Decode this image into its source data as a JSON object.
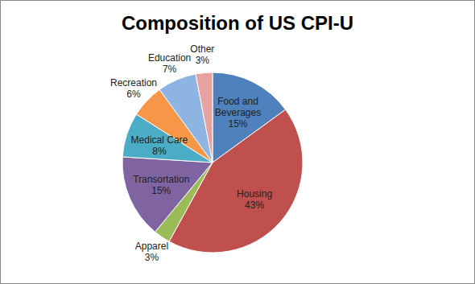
{
  "chart_data": {
    "type": "pie",
    "title": "Composition of US CPI-U",
    "categories": [
      "Food and Beverages",
      "Housing",
      "Apparel",
      "Transortation",
      "Medical Care",
      "Recreation",
      "Education",
      "Other"
    ],
    "values": [
      15,
      43,
      3,
      15,
      8,
      6,
      7,
      3
    ],
    "value_labels": [
      "15%",
      "43%",
      "3%",
      "15%",
      "8%",
      "6%",
      "7%",
      "3%"
    ],
    "colors": [
      "#4f81bd",
      "#c0504d",
      "#9bbb59",
      "#8064a2",
      "#4bacc6",
      "#f79646",
      "#8eb4e3",
      "#e6a2a0"
    ]
  }
}
